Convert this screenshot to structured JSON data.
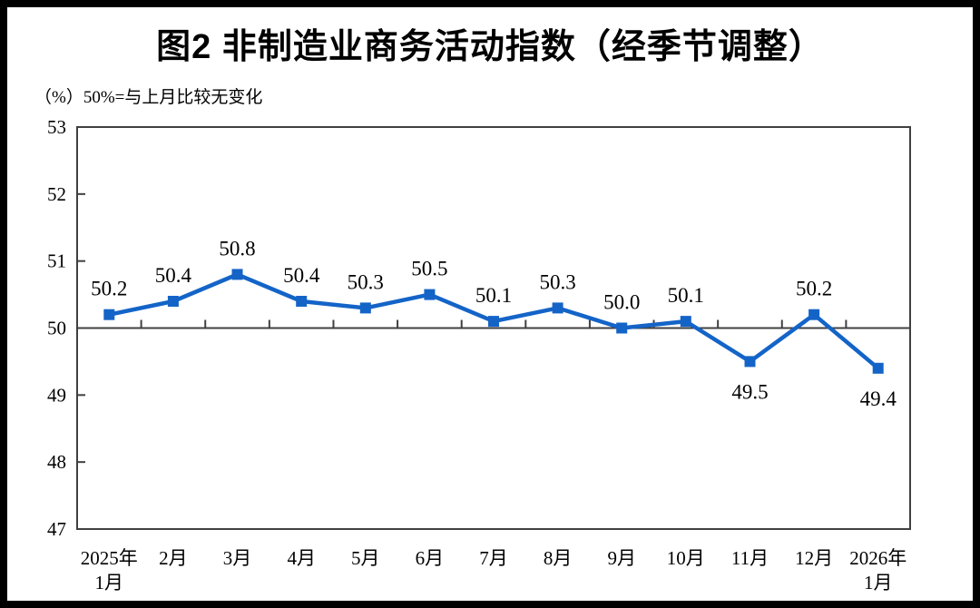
{
  "title": "图2 非制造业商务活动指数（经季节调整）",
  "subtitle": "（%）50%=与上月比较无变化",
  "colors": {
    "line": "#1464c8",
    "marker": "#1464c8",
    "axis": "#404040",
    "text": "#000000",
    "frame": "#000000",
    "background": "#ffffff"
  },
  "chart_data": {
    "type": "line",
    "title": "图2 非制造业商务活动指数（经季节调整）",
    "unit_note": "（%）50%=与上月比较无变化",
    "categories": [
      "2025年\n1月",
      "2月",
      "3月",
      "4月",
      "5月",
      "6月",
      "7月",
      "8月",
      "9月",
      "10月",
      "11月",
      "12月",
      "2026年\n1月"
    ],
    "values": [
      50.2,
      50.4,
      50.8,
      50.4,
      50.3,
      50.5,
      50.1,
      50.3,
      50.0,
      50.1,
      49.5,
      50.2,
      49.4
    ],
    "point_labels": [
      "50.2",
      "50.4",
      "50.8",
      "50.4",
      "50.3",
      "50.5",
      "50.1",
      "50.3",
      "50.0",
      "50.1",
      "49.5",
      "50.2",
      "49.4"
    ],
    "label_positions": [
      "above",
      "above",
      "above",
      "above",
      "above",
      "above",
      "above",
      "above",
      "above",
      "above",
      "below",
      "above",
      "below"
    ],
    "ylim": [
      47,
      53
    ],
    "yticks": [
      47,
      48,
      49,
      50,
      51,
      52,
      53
    ],
    "reference_line": 50,
    "grid": false,
    "legend": "none",
    "marker": "square"
  }
}
